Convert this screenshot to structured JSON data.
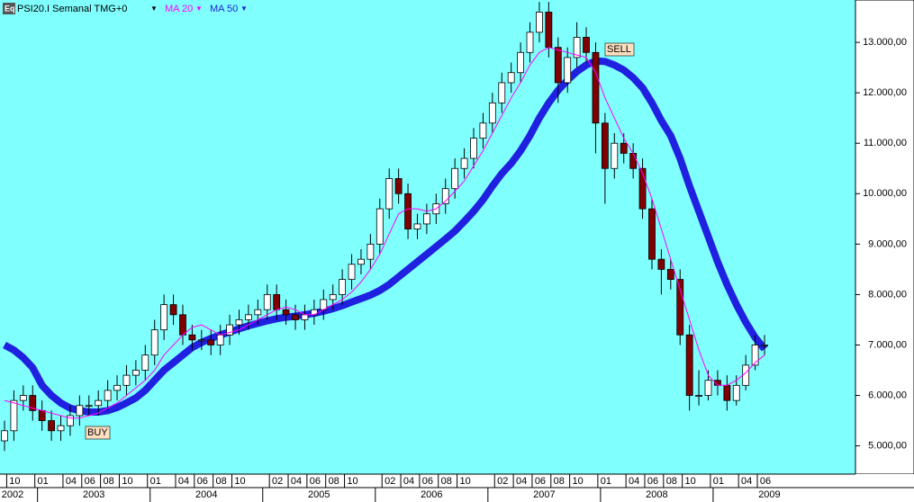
{
  "chart_data": {
    "type": "candlestick",
    "title": "PSI20.I Semanal TMG+0",
    "icon": "Eq",
    "x": [
      "2002-09",
      "2002-10",
      "2002-11",
      "2002-12",
      "2003-01",
      "2003-02",
      "2003-03",
      "2003-04",
      "2003-05",
      "2003-06",
      "2003-07",
      "2003-08",
      "2003-09",
      "2003-10",
      "2003-11",
      "2003-12",
      "2004-01",
      "2004-02",
      "2004-03",
      "2004-04",
      "2004-05",
      "2004-06",
      "2004-07",
      "2004-08",
      "2004-09",
      "2004-10",
      "2004-11",
      "2004-12",
      "2005-01",
      "2005-02",
      "2005-03",
      "2005-04",
      "2005-05",
      "2005-06",
      "2005-07",
      "2005-08",
      "2005-09",
      "2005-10",
      "2005-11",
      "2005-12",
      "2006-01",
      "2006-02",
      "2006-03",
      "2006-04",
      "2006-05",
      "2006-06",
      "2006-07",
      "2006-08",
      "2006-09",
      "2006-10",
      "2006-11",
      "2006-12",
      "2007-01",
      "2007-02",
      "2007-03",
      "2007-04",
      "2007-05",
      "2007-06",
      "2007-07",
      "2007-08",
      "2007-09",
      "2007-10",
      "2007-11",
      "2007-12",
      "2008-01",
      "2008-02",
      "2008-03",
      "2008-04",
      "2008-05",
      "2008-06",
      "2008-07",
      "2008-08",
      "2008-09",
      "2008-10",
      "2008-11",
      "2008-12",
      "2009-01",
      "2009-02",
      "2009-03",
      "2009-04",
      "2009-05",
      "2009-06"
    ],
    "open": [
      5100,
      5300,
      5900,
      6000,
      5700,
      5500,
      5300,
      5400,
      5600,
      5800,
      5800,
      5900,
      6100,
      6200,
      6400,
      6500,
      6800,
      7300,
      7800,
      7600,
      7200,
      7100,
      7100,
      7000,
      7200,
      7400,
      7500,
      7600,
      7700,
      8000,
      7700,
      7600,
      7500,
      7600,
      7700,
      7900,
      8000,
      8300,
      8600,
      8700,
      9000,
      9700,
      10300,
      10000,
      9300,
      9400,
      9600,
      9800,
      10100,
      10500,
      10700,
      11100,
      11400,
      11800,
      12200,
      12400,
      12800,
      13200,
      13600,
      12900,
      12200,
      12700,
      13100,
      12800,
      11400,
      10500,
      11000,
      10800,
      10500,
      9700,
      8700,
      8500,
      8300,
      7200,
      6000,
      6000,
      6300,
      6200,
      5900,
      6200,
      6600,
      7000
    ],
    "high": [
      5500,
      6100,
      6200,
      6200,
      5900,
      5700,
      5600,
      5800,
      6000,
      6000,
      6100,
      6300,
      6400,
      6600,
      6700,
      7000,
      7500,
      8000,
      8000,
      7800,
      7400,
      7300,
      7300,
      7400,
      7600,
      7700,
      7800,
      7900,
      8200,
      8200,
      7900,
      7800,
      7800,
      7900,
      8100,
      8200,
      8500,
      8800,
      8900,
      9200,
      9900,
      10500,
      10500,
      10200,
      9600,
      9800,
      10000,
      10300,
      10700,
      10900,
      11300,
      11600,
      12000,
      12400,
      12600,
      13000,
      13400,
      13800,
      13800,
      13100,
      12900,
      13400,
      13300,
      13000,
      11600,
      11200,
      11200,
      11000,
      10700,
      9900,
      8900,
      8700,
      8500,
      7400,
      6500,
      6500,
      6500,
      6400,
      6400,
      6800,
      7200,
      7200
    ],
    "low": [
      4900,
      5100,
      5700,
      5500,
      5300,
      5100,
      5100,
      5200,
      5400,
      5600,
      5600,
      5700,
      5900,
      6000,
      6200,
      6300,
      6600,
      7100,
      7400,
      7000,
      6900,
      6900,
      6800,
      6800,
      7000,
      7200,
      7300,
      7400,
      7500,
      7500,
      7400,
      7300,
      7300,
      7400,
      7500,
      7700,
      7800,
      8100,
      8400,
      8500,
      8800,
      9500,
      9800,
      9100,
      9100,
      9200,
      9400,
      9600,
      9900,
      10300,
      10500,
      10900,
      11200,
      11600,
      12000,
      12200,
      12600,
      13000,
      12700,
      11800,
      12000,
      12500,
      12600,
      10800,
      9800,
      10300,
      10600,
      10300,
      9500,
      8500,
      8000,
      8100,
      7000,
      5700,
      5800,
      5900,
      6000,
      5700,
      5800,
      6100,
      6500,
      6800
    ],
    "close": [
      5300,
      5900,
      6000,
      5700,
      5500,
      5300,
      5400,
      5600,
      5800,
      5800,
      5900,
      6100,
      6200,
      6400,
      6500,
      6800,
      7300,
      7800,
      7600,
      7200,
      7100,
      7100,
      7000,
      7200,
      7400,
      7500,
      7600,
      7700,
      8000,
      7700,
      7600,
      7500,
      7600,
      7700,
      7900,
      8000,
      8300,
      8600,
      8700,
      9000,
      9700,
      10300,
      10000,
      9300,
      9400,
      9600,
      9800,
      10100,
      10500,
      10700,
      11100,
      11400,
      11800,
      12200,
      12400,
      12800,
      13200,
      13600,
      12900,
      12200,
      12700,
      13100,
      12800,
      11400,
      10500,
      11000,
      10800,
      10500,
      9700,
      8700,
      8500,
      8300,
      7200,
      6000,
      6000,
      6300,
      6200,
      5900,
      6200,
      6600,
      7000,
      7000
    ],
    "up_color": "#ffffff",
    "down_color": "#800000",
    "series": [
      {
        "name": "MA 20",
        "color": "#ff00ff",
        "values": [
          5900,
          5850,
          5800,
          5750,
          5700,
          5650,
          5600,
          5550,
          5550,
          5600,
          5650,
          5750,
          5850,
          6000,
          6150,
          6300,
          6500,
          6800,
          7000,
          7200,
          7350,
          7400,
          7300,
          7200,
          7250,
          7300,
          7400,
          7500,
          7600,
          7700,
          7750,
          7700,
          7600,
          7600,
          7700,
          7800,
          7900,
          8050,
          8250,
          8500,
          8800,
          9200,
          9600,
          9700,
          9700,
          9650,
          9700,
          9850,
          10050,
          10250,
          10550,
          10850,
          11200,
          11550,
          11900,
          12200,
          12550,
          12800,
          12900,
          12850,
          12800,
          12750,
          12700,
          12400,
          11900,
          11500,
          11100,
          10800,
          10400,
          9900,
          9300,
          8700,
          8100,
          7500,
          6900,
          6400,
          6200,
          6200,
          6300,
          6450,
          6650,
          6800
        ]
      },
      {
        "name": "MA 50",
        "color": "#2020e0",
        "values": [
          7000,
          6900,
          6750,
          6550,
          6200,
          6000,
          5850,
          5750,
          5700,
          5670,
          5670,
          5700,
          5760,
          5850,
          5950,
          6100,
          6300,
          6500,
          6650,
          6800,
          6950,
          7050,
          7130,
          7200,
          7260,
          7320,
          7380,
          7430,
          7480,
          7520,
          7550,
          7570,
          7600,
          7630,
          7670,
          7720,
          7780,
          7850,
          7920,
          7990,
          8080,
          8200,
          8350,
          8500,
          8650,
          8800,
          8950,
          9100,
          9260,
          9450,
          9650,
          9880,
          10150,
          10400,
          10600,
          10850,
          11150,
          11500,
          11800,
          12050,
          12250,
          12420,
          12550,
          12630,
          12620,
          12550,
          12450,
          12300,
          12100,
          11800,
          11450,
          11150,
          10700,
          10150,
          9650,
          9150,
          8650,
          8200,
          7800,
          7450,
          7150,
          6920
        ]
      }
    ],
    "ylim": [
      4440,
      13840
    ],
    "yticks": [
      {
        "value": 5000,
        "label": "5.000,00"
      },
      {
        "value": 6000,
        "label": "6.000,00"
      },
      {
        "value": 7000,
        "label": "7.000,00"
      },
      {
        "value": 8000,
        "label": "8.000,00"
      },
      {
        "value": 9000,
        "label": "9.000,00"
      },
      {
        "value": 10000,
        "label": "10.000,00"
      },
      {
        "value": 11000,
        "label": "11.000,00"
      },
      {
        "value": 12000,
        "label": "12.000,00"
      },
      {
        "value": 13000,
        "label": "13.000,00"
      }
    ],
    "xticks": [
      {
        "value": "2002-10",
        "label": "10"
      },
      {
        "value": "2003-01",
        "label": "01"
      },
      {
        "value": "2003-04",
        "label": "04"
      },
      {
        "value": "2003-06",
        "label": "06"
      },
      {
        "value": "2003-08",
        "label": "08"
      },
      {
        "value": "2003-10",
        "label": "10"
      },
      {
        "value": "2004-01",
        "label": "01"
      },
      {
        "value": "2004-04",
        "label": "04"
      },
      {
        "value": "2004-06",
        "label": "06"
      },
      {
        "value": "2004-08",
        "label": "08"
      },
      {
        "value": "2004-10",
        "label": "10"
      },
      {
        "value": "2005-02",
        "label": "02"
      },
      {
        "value": "2005-04",
        "label": "04"
      },
      {
        "value": "2005-06",
        "label": "06"
      },
      {
        "value": "2005-08",
        "label": "08"
      },
      {
        "value": "2005-10",
        "label": "10"
      },
      {
        "value": "2006-02",
        "label": "02"
      },
      {
        "value": "2006-04",
        "label": "04"
      },
      {
        "value": "2006-06",
        "label": "06"
      },
      {
        "value": "2006-08",
        "label": "08"
      },
      {
        "value": "2006-10",
        "label": "10"
      },
      {
        "value": "2007-02",
        "label": "02"
      },
      {
        "value": "2007-04",
        "label": "04"
      },
      {
        "value": "2007-06",
        "label": "06"
      },
      {
        "value": "2007-08",
        "label": "08"
      },
      {
        "value": "2007-10",
        "label": "10"
      },
      {
        "value": "2008-01",
        "label": "01"
      },
      {
        "value": "2008-04",
        "label": "04"
      },
      {
        "value": "2008-06",
        "label": "06"
      },
      {
        "value": "2008-08",
        "label": "08"
      },
      {
        "value": "2008-10",
        "label": "10"
      },
      {
        "value": "2009-01",
        "label": "01"
      },
      {
        "value": "2009-04",
        "label": "04"
      },
      {
        "value": "2009-06",
        "label": "06"
      }
    ],
    "year_ticks": [
      "2002",
      "2003",
      "2004",
      "2005",
      "2006",
      "2007",
      "2008",
      "2009"
    ],
    "annotations": [
      "BUY",
      "SELL"
    ],
    "grid": false
  }
}
